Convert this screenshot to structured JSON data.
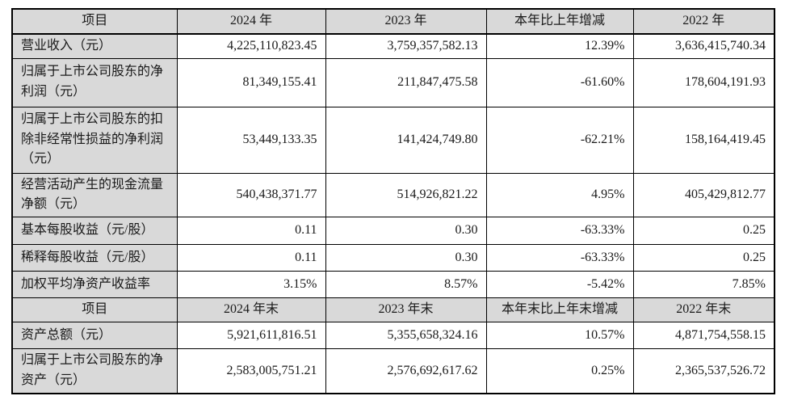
{
  "colors": {
    "header_background": "#d9d9d9",
    "label_column_background": "#d9d9d9",
    "cell_background": "#ffffff",
    "border": "#000000",
    "text": "#1a1a1a"
  },
  "table": {
    "header1": [
      "项目",
      "2024 年",
      "2023 年",
      "本年比上年增减",
      "2022 年"
    ],
    "rows1": [
      [
        "营业收入（元）",
        "4,225,110,823.45",
        "3,759,357,582.13",
        "12.39%",
        "3,636,415,740.34"
      ],
      [
        "归属于上市公司股东的净利润（元）",
        "81,349,155.41",
        "211,847,475.58",
        "-61.60%",
        "178,604,191.93"
      ],
      [
        "归属于上市公司股东的扣除非经常性损益的净利润（元）",
        "53,449,133.35",
        "141,424,749.80",
        "-62.21%",
        "158,164,419.45"
      ],
      [
        "经营活动产生的现金流量净额（元）",
        "540,438,371.77",
        "514,926,821.22",
        "4.95%",
        "405,429,812.77"
      ],
      [
        "基本每股收益（元/股）",
        "0.11",
        "0.30",
        "-63.33%",
        "0.25"
      ],
      [
        "稀释每股收益（元/股）",
        "0.11",
        "0.30",
        "-63.33%",
        "0.25"
      ],
      [
        "加权平均净资产收益率",
        "3.15%",
        "8.57%",
        "-5.42%",
        "7.85%"
      ]
    ],
    "header2": [
      "项目",
      "2024 年末",
      "2023 年末",
      "本年末比上年末增减",
      "2022 年末"
    ],
    "rows2": [
      [
        "资产总额（元）",
        "5,921,611,816.51",
        "5,355,658,324.16",
        "10.57%",
        "4,871,754,558.15"
      ],
      [
        "归属于上市公司股东的净资产（元）",
        "2,583,005,751.21",
        "2,576,692,617.62",
        "0.25%",
        "2,365,537,526.72"
      ]
    ]
  }
}
